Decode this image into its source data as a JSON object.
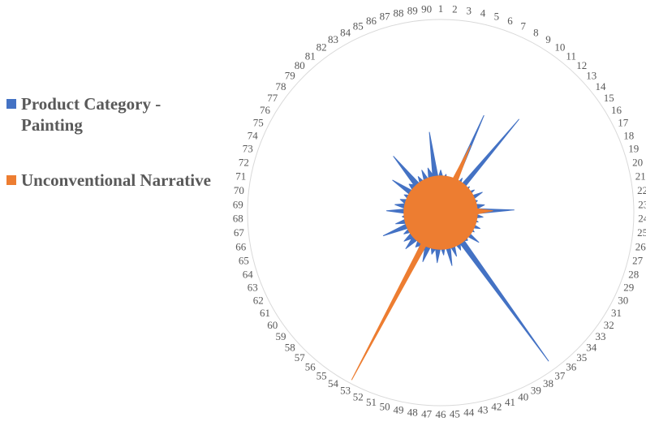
{
  "legend": {
    "items": [
      {
        "label": "Product Category - Painting",
        "color": "#4472C4"
      },
      {
        "label": "Unconventional Narrative",
        "color": "#ED7D31"
      }
    ]
  },
  "chart_data": {
    "type": "radar",
    "title": "",
    "categories": [
      "1",
      "2",
      "3",
      "4",
      "5",
      "6",
      "7",
      "8",
      "9",
      "10",
      "11",
      "12",
      "13",
      "14",
      "15",
      "16",
      "17",
      "18",
      "19",
      "20",
      "21",
      "22",
      "23",
      "24",
      "25",
      "26",
      "27",
      "28",
      "29",
      "30",
      "31",
      "32",
      "33",
      "34",
      "35",
      "36",
      "37",
      "38",
      "39",
      "40",
      "41",
      "42",
      "43",
      "44",
      "45",
      "46",
      "47",
      "48",
      "49",
      "50",
      "51",
      "52",
      "53",
      "54",
      "55",
      "56",
      "57",
      "58",
      "59",
      "60",
      "61",
      "62",
      "63",
      "64",
      "65",
      "66",
      "67",
      "68",
      "69",
      "70",
      "71",
      "72",
      "73",
      "74",
      "75",
      "76",
      "77",
      "78",
      "79",
      "80",
      "81",
      "82",
      "83",
      "84",
      "85",
      "86",
      "87",
      "88",
      "89",
      "90"
    ],
    "series": [
      {
        "name": "Product Category - Painting",
        "color": "#4472C4",
        "values": [
          0.22,
          0.18,
          0.2,
          0.16,
          0.19,
          0.15,
          0.55,
          0.16,
          0.21,
          0.17,
          0.63,
          0.16,
          0.2,
          0.17,
          0.21,
          0.16,
          0.24,
          0.18,
          0.2,
          0.18,
          0.23,
          0.19,
          0.38,
          0.18,
          0.22,
          0.17,
          0.2,
          0.16,
          0.22,
          0.18,
          0.2,
          0.16,
          0.25,
          0.18,
          0.2,
          0.19,
          0.95,
          0.19,
          0.22,
          0.17,
          0.24,
          0.18,
          0.28,
          0.17,
          0.22,
          0.18,
          0.26,
          0.19,
          0.22,
          0.18,
          0.27,
          0.2,
          0.5,
          0.2,
          0.22,
          0.18,
          0.26,
          0.2,
          0.24,
          0.18,
          0.22,
          0.18,
          0.32,
          0.18,
          0.24,
          0.18,
          0.2,
          0.17,
          0.28,
          0.18,
          0.24,
          0.19,
          0.22,
          0.18,
          0.21,
          0.18,
          0.3,
          0.18,
          0.22,
          0.2,
          0.38,
          0.18,
          0.22,
          0.18,
          0.24,
          0.18,
          0.24,
          0.2,
          0.42,
          0.18
        ]
      },
      {
        "name": "Unconventional Narrative",
        "color": "#ED7D31",
        "values": [
          0.19,
          0.19,
          0.19,
          0.19,
          0.19,
          0.19,
          0.38,
          0.19,
          0.19,
          0.19,
          0.19,
          0.19,
          0.19,
          0.19,
          0.19,
          0.19,
          0.19,
          0.19,
          0.19,
          0.19,
          0.19,
          0.19,
          0.27,
          0.19,
          0.19,
          0.19,
          0.19,
          0.19,
          0.19,
          0.19,
          0.19,
          0.19,
          0.19,
          0.19,
          0.19,
          0.19,
          0.19,
          0.19,
          0.19,
          0.19,
          0.19,
          0.19,
          0.19,
          0.19,
          0.19,
          0.19,
          0.19,
          0.19,
          0.19,
          0.19,
          0.19,
          0.19,
          0.98,
          0.19,
          0.19,
          0.19,
          0.19,
          0.19,
          0.19,
          0.19,
          0.19,
          0.19,
          0.19,
          0.19,
          0.19,
          0.19,
          0.19,
          0.19,
          0.19,
          0.19,
          0.19,
          0.19,
          0.19,
          0.19,
          0.19,
          0.19,
          0.19,
          0.19,
          0.19,
          0.19,
          0.19,
          0.19,
          0.19,
          0.19,
          0.19,
          0.19,
          0.19,
          0.19,
          0.19,
          0.19
        ]
      }
    ],
    "range": [
      0,
      1
    ],
    "grid": false,
    "legend_position": "left"
  }
}
